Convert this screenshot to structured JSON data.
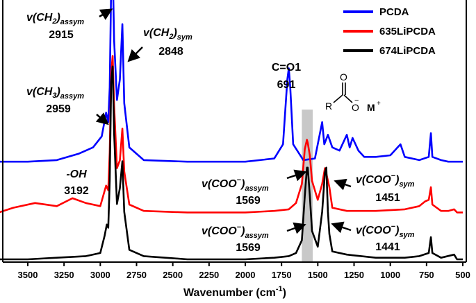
{
  "chart_data": {
    "type": "line",
    "title": "",
    "xlabel": "Wavenumber (cm-1)",
    "ylabel": "",
    "x_reversed": true,
    "xlim": [
      3700,
      500
    ],
    "xticks": [
      "3500",
      "3250",
      "3000",
      "2750",
      "2500",
      "2250",
      "2000",
      "1750",
      "1500",
      "1250",
      "1000",
      "750",
      "500"
    ],
    "grid": false,
    "legend": {
      "placement": "top-right",
      "entries": [
        {
          "name": "PCDA",
          "color": "#0000ff"
        },
        {
          "name": "635LiPCDA",
          "color": "#ff0000"
        },
        {
          "name": "674LiPCDA",
          "color": "#000000"
        }
      ]
    },
    "highlight_band": {
      "x_from": 1610,
      "x_to": 1535,
      "color": "#c8c8c8"
    },
    "series": [
      {
        "name": "PCDA",
        "color": "#0000ff",
        "points": [
          [
            3700,
            0.03
          ],
          [
            3500,
            0.03
          ],
          [
            3300,
            0.04
          ],
          [
            3150,
            0.08
          ],
          [
            3050,
            0.12
          ],
          [
            2990,
            0.19
          ],
          [
            2960,
            0.34
          ],
          [
            2945,
            0.28
          ],
          [
            2935,
            0.5
          ],
          [
            2925,
            1.15
          ],
          [
            2915,
            1.28
          ],
          [
            2905,
            0.8
          ],
          [
            2885,
            0.42
          ],
          [
            2865,
            0.55
          ],
          [
            2848,
            0.9
          ],
          [
            2835,
            0.4
          ],
          [
            2800,
            0.12
          ],
          [
            2700,
            0.04
          ],
          [
            2400,
            0.03
          ],
          [
            2000,
            0.03
          ],
          [
            1800,
            0.05
          ],
          [
            1740,
            0.14
          ],
          [
            1710,
            0.55
          ],
          [
            1700,
            0.62
          ],
          [
            1690,
            0.5
          ],
          [
            1670,
            0.14
          ],
          [
            1600,
            0.04
          ],
          [
            1520,
            0.05
          ],
          [
            1470,
            0.28
          ],
          [
            1455,
            0.14
          ],
          [
            1430,
            0.2
          ],
          [
            1400,
            0.12
          ],
          [
            1350,
            0.1
          ],
          [
            1300,
            0.2
          ],
          [
            1280,
            0.12
          ],
          [
            1260,
            0.18
          ],
          [
            1220,
            0.1
          ],
          [
            1180,
            0.06
          ],
          [
            1100,
            0.06
          ],
          [
            1000,
            0.07
          ],
          [
            950,
            0.12
          ],
          [
            930,
            0.14
          ],
          [
            900,
            0.06
          ],
          [
            800,
            0.04
          ],
          [
            735,
            0.06
          ],
          [
            720,
            0.21
          ],
          [
            710,
            0.06
          ],
          [
            650,
            0.04
          ],
          [
            600,
            0.03
          ],
          [
            500,
            0.03
          ]
        ]
      },
      {
        "name": "635LiPCDA",
        "color": "#ff0000",
        "points": [
          [
            3700,
            0.02
          ],
          [
            3600,
            0.05
          ],
          [
            3450,
            0.08
          ],
          [
            3300,
            0.06
          ],
          [
            3192,
            0.11
          ],
          [
            3100,
            0.08
          ],
          [
            3000,
            0.06
          ],
          [
            2960,
            0.19
          ],
          [
            2945,
            0.16
          ],
          [
            2935,
            0.4
          ],
          [
            2925,
            0.9
          ],
          [
            2915,
            1.01
          ],
          [
            2905,
            0.7
          ],
          [
            2885,
            0.3
          ],
          [
            2865,
            0.35
          ],
          [
            2848,
            0.55
          ],
          [
            2835,
            0.28
          ],
          [
            2800,
            0.07
          ],
          [
            2700,
            0.03
          ],
          [
            2400,
            0.02
          ],
          [
            2000,
            0.02
          ],
          [
            1800,
            0.03
          ],
          [
            1700,
            0.04
          ],
          [
            1650,
            0.08
          ],
          [
            1610,
            0.2
          ],
          [
            1590,
            0.42
          ],
          [
            1575,
            0.48
          ],
          [
            1569,
            0.46
          ],
          [
            1555,
            0.38
          ],
          [
            1540,
            0.22
          ],
          [
            1500,
            0.1
          ],
          [
            1470,
            0.2
          ],
          [
            1451,
            0.3
          ],
          [
            1440,
            0.26
          ],
          [
            1420,
            0.18
          ],
          [
            1400,
            0.05
          ],
          [
            1300,
            0.03
          ],
          [
            1100,
            0.03
          ],
          [
            900,
            0.04
          ],
          [
            800,
            0.06
          ],
          [
            760,
            0.09
          ],
          [
            735,
            0.1
          ],
          [
            720,
            0.18
          ],
          [
            710,
            0.07
          ],
          [
            650,
            0.03
          ],
          [
            600,
            0.03
          ],
          [
            560,
            0.04
          ],
          [
            540,
            0.02
          ],
          [
            500,
            0.02
          ]
        ]
      },
      {
        "name": "674LiPCDA",
        "color": "#000000",
        "points": [
          [
            3700,
            0.0
          ],
          [
            3500,
            0.0
          ],
          [
            3300,
            0.01
          ],
          [
            3100,
            0.02
          ],
          [
            3000,
            0.04
          ],
          [
            2970,
            0.15
          ],
          [
            2955,
            0.22
          ],
          [
            2945,
            0.2
          ],
          [
            2935,
            0.5
          ],
          [
            2925,
            1.12
          ],
          [
            2915,
            1.22
          ],
          [
            2905,
            0.8
          ],
          [
            2885,
            0.35
          ],
          [
            2865,
            0.45
          ],
          [
            2848,
            0.62
          ],
          [
            2835,
            0.3
          ],
          [
            2800,
            0.06
          ],
          [
            2700,
            0.02
          ],
          [
            2400,
            0.0
          ],
          [
            2000,
            0.0
          ],
          [
            1800,
            0.01
          ],
          [
            1700,
            0.02
          ],
          [
            1650,
            0.04
          ],
          [
            1610,
            0.12
          ],
          [
            1590,
            0.4
          ],
          [
            1575,
            0.58
          ],
          [
            1569,
            0.58
          ],
          [
            1555,
            0.4
          ],
          [
            1540,
            0.18
          ],
          [
            1500,
            0.08
          ],
          [
            1470,
            0.3
          ],
          [
            1451,
            0.55
          ],
          [
            1441,
            0.58
          ],
          [
            1430,
            0.3
          ],
          [
            1420,
            0.16
          ],
          [
            1400,
            0.05
          ],
          [
            1300,
            0.03
          ],
          [
            1100,
            0.01
          ],
          [
            900,
            0.01
          ],
          [
            800,
            0.02
          ],
          [
            735,
            0.04
          ],
          [
            720,
            0.14
          ],
          [
            710,
            0.04
          ],
          [
            650,
            0.01
          ],
          [
            560,
            0.03
          ],
          [
            540,
            0.0
          ],
          [
            500,
            0.0
          ]
        ]
      }
    ],
    "annotations": [
      {
        "pre": "v(CH",
        "mid": "2",
        "post": ")",
        "sub": "assym",
        "value": "2915"
      },
      {
        "pre": "v(CH",
        "mid": "2",
        "post": ")",
        "sub": "sym",
        "value": "2848"
      },
      {
        "pre": "v(CH",
        "mid": "3",
        "post": ")",
        "sub": "assym",
        "value": "2959"
      },
      {
        "label": "C=O1",
        "value": "691"
      },
      {
        "label": "-OH",
        "value": "3192"
      },
      {
        "pre": "v(COO",
        "post": ")",
        "sub": "assym",
        "value": "1569"
      },
      {
        "pre": "v(COO",
        "post": ")",
        "sub": "sym",
        "value": "1451"
      },
      {
        "pre": "v(COO",
        "post": ")",
        "sub": "assym",
        "value": "1569"
      },
      {
        "pre": "v(COO",
        "post": ")",
        "sub": "sym",
        "value": "1441"
      }
    ],
    "structure": {
      "r": "R",
      "o_top": "O",
      "o_minus": "O",
      "minus": "−",
      "metal": "M",
      "plus": "+"
    }
  }
}
